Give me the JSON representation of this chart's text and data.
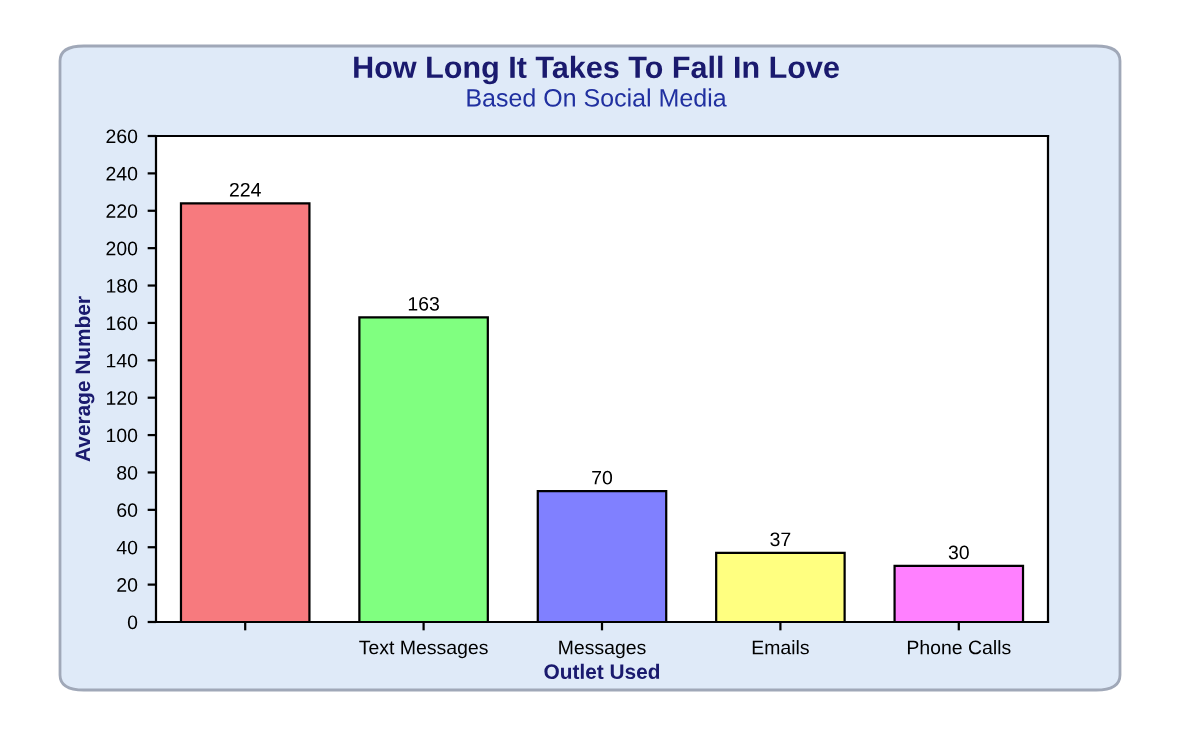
{
  "chart_data": {
    "type": "bar",
    "title": "How Long It Takes To Fall In Love",
    "subtitle": "Based On Social Media",
    "xlabel": "Outlet Used",
    "ylabel": "Average Number",
    "categories": [
      null,
      "Text Messages",
      "Messages",
      "Emails",
      "Phone Calls"
    ],
    "values": [
      224,
      163,
      70,
      37,
      30
    ],
    "colors": [
      "#f77a7e",
      "#80ff80",
      "#8080ff",
      "#ffff80",
      "#ff80ff"
    ],
    "ylim": [
      0,
      260
    ],
    "yticks": [
      0,
      20,
      40,
      60,
      80,
      100,
      120,
      140,
      160,
      180,
      200,
      220,
      240,
      260
    ],
    "data_labels": true,
    "grid": false,
    "legend": false
  }
}
